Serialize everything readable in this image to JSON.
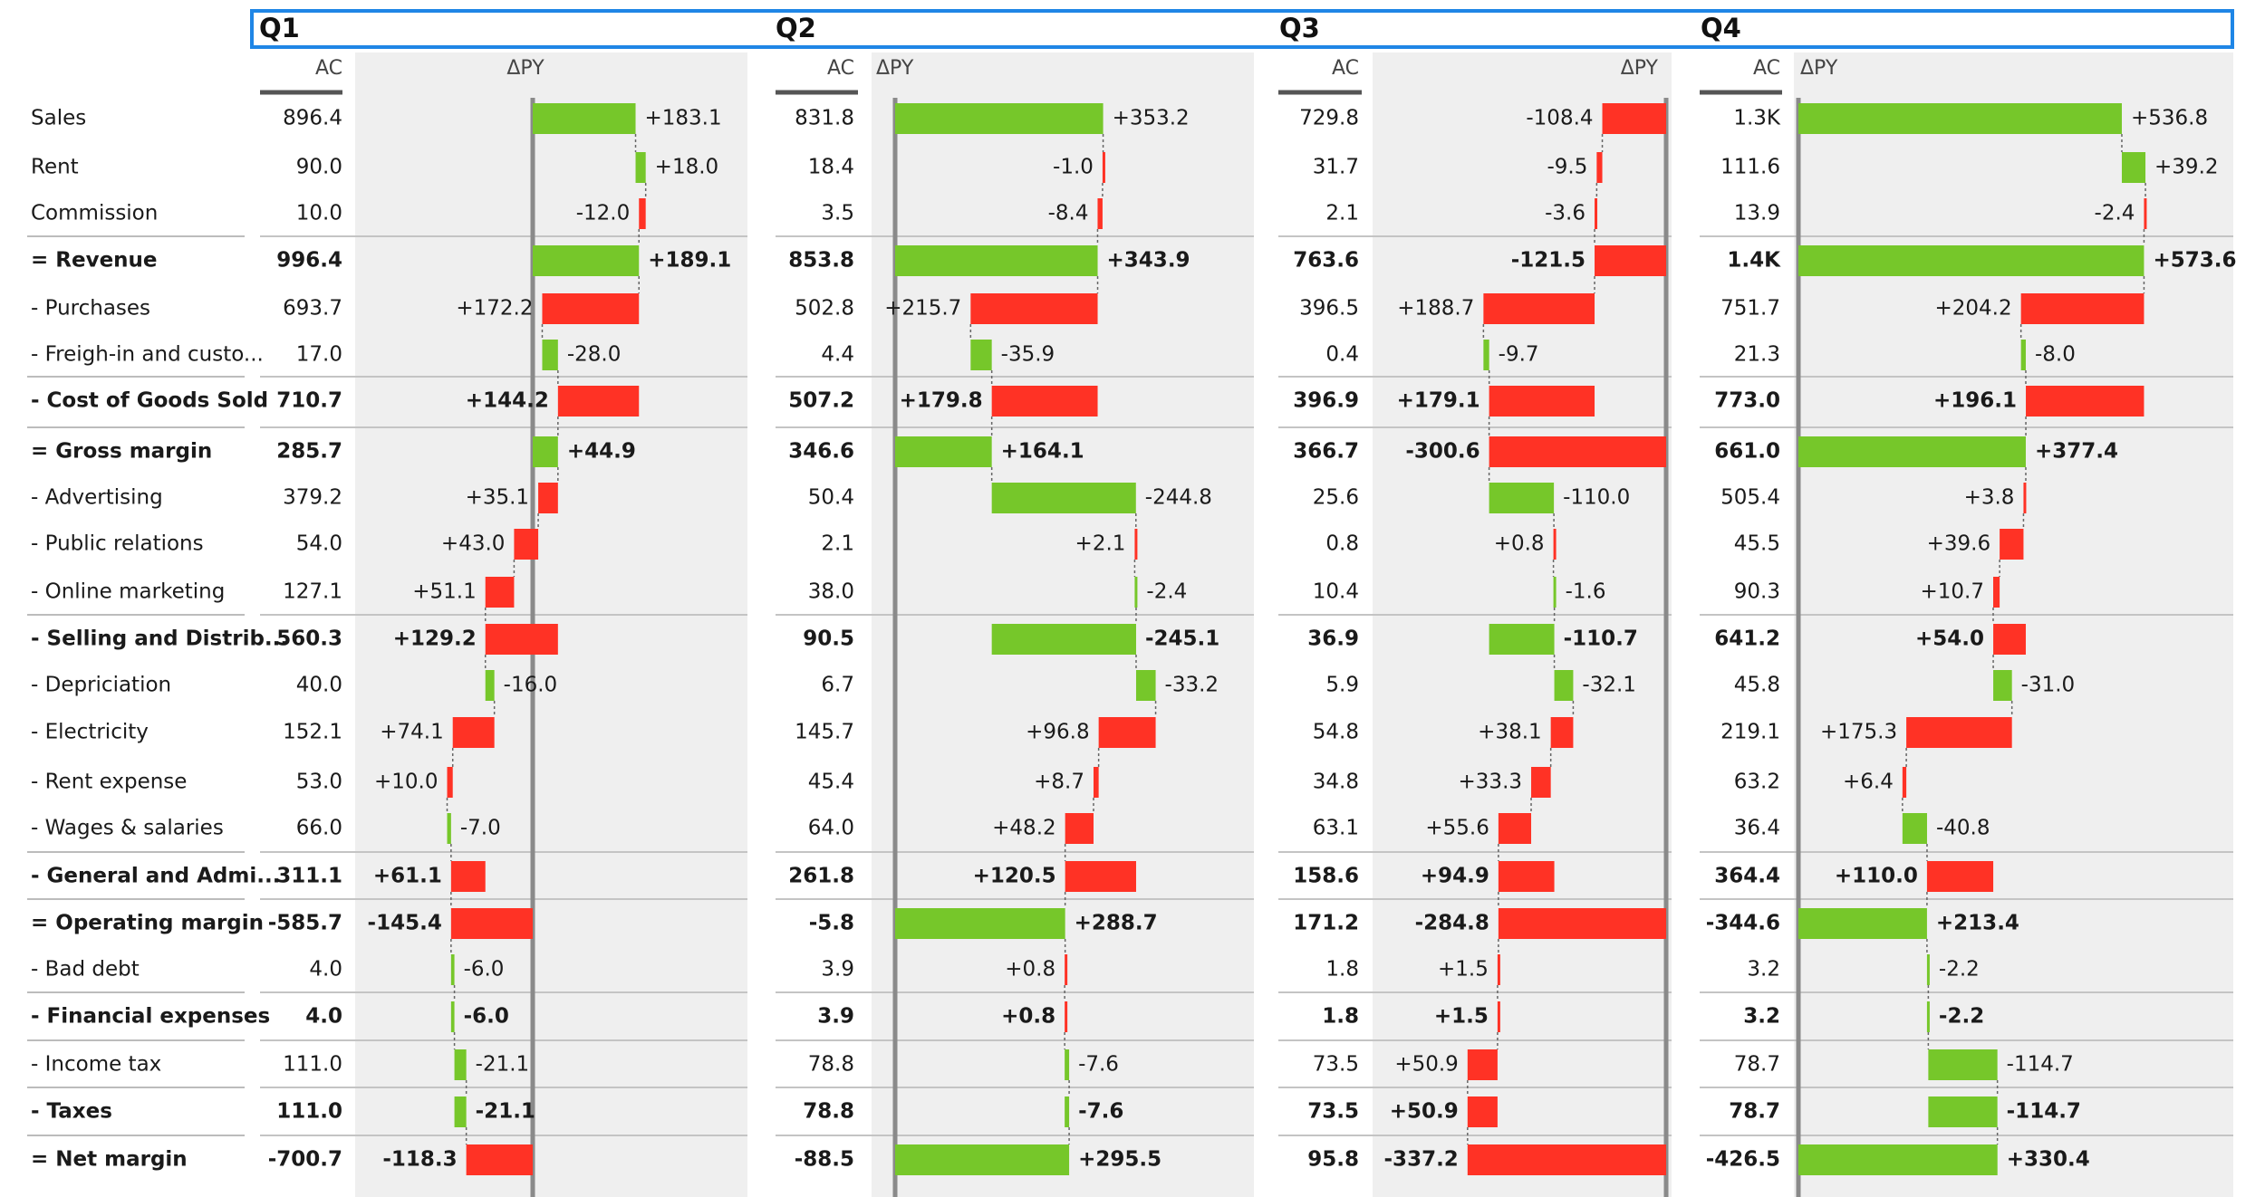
{
  "colors": {
    "positive": "#76c72a",
    "negative": "#ff3225",
    "panel": "#efefef",
    "axis": "#8a8a8a",
    "header_border": "#1f86e6"
  },
  "header": {
    "quarters": [
      "Q1",
      "Q2",
      "Q3",
      "Q4"
    ]
  },
  "column_headers": {
    "actual": "AC",
    "delta": "ΔPY"
  },
  "chart_data": {
    "type": "table",
    "title": "",
    "rows": [
      {
        "label": "Sales",
        "kind": "item"
      },
      {
        "label": "Rent",
        "kind": "item"
      },
      {
        "label": "Commission",
        "kind": "item"
      },
      {
        "label": "= Revenue",
        "kind": "result"
      },
      {
        "label": "- Purchases",
        "kind": "item"
      },
      {
        "label": "- Freigh-in and custo...",
        "kind": "item"
      },
      {
        "label": "- Cost of Goods Sold",
        "kind": "subtotal"
      },
      {
        "label": "= Gross margin",
        "kind": "result"
      },
      {
        "label": "- Advertising",
        "kind": "item"
      },
      {
        "label": "- Public relations",
        "kind": "item"
      },
      {
        "label": "- Online marketing",
        "kind": "item"
      },
      {
        "label": "- Selling and Distrib...",
        "kind": "subtotal"
      },
      {
        "label": "- Depriciation",
        "kind": "item"
      },
      {
        "label": "- Electricity",
        "kind": "item"
      },
      {
        "label": "- Rent expense",
        "kind": "item"
      },
      {
        "label": "- Wages & salaries",
        "kind": "item"
      },
      {
        "label": "- General and Admi...",
        "kind": "subtotal"
      },
      {
        "label": "= Operating margin",
        "kind": "result"
      },
      {
        "label": "- Bad debt",
        "kind": "item"
      },
      {
        "label": "- Financial expenses",
        "kind": "subtotal"
      },
      {
        "label": "- Income tax",
        "kind": "item"
      },
      {
        "label": "- Taxes",
        "kind": "subtotal"
      },
      {
        "label": "= Net margin",
        "kind": "result"
      }
    ],
    "quarters": [
      {
        "name": "Q1",
        "ac": [
          "896.4",
          "90.0",
          "10.0",
          "996.4",
          "693.7",
          "17.0",
          "710.7",
          "285.7",
          "379.2",
          "54.0",
          "127.1",
          "560.3",
          "40.0",
          "152.1",
          "53.0",
          "66.0",
          "311.1",
          "-585.7",
          "4.0",
          "4.0",
          "111.0",
          "111.0",
          "-700.7"
        ],
        "delta": [
          183.1,
          18.0,
          -12.0,
          189.1,
          172.2,
          -28.0,
          144.2,
          44.9,
          35.1,
          43.0,
          51.1,
          129.2,
          -16.0,
          74.1,
          10.0,
          -7.0,
          61.1,
          -145.4,
          -6.0,
          -6.0,
          -21.1,
          -21.1,
          -118.3
        ],
        "delta_labels": [
          "+183.1",
          "+18.0",
          "-12.0",
          "+189.1",
          "+172.2",
          "-28.0",
          "+144.2",
          "+44.9",
          "+35.1",
          "+43.0",
          "+51.1",
          "+129.2",
          "-16.0",
          "+74.1",
          "+10.0",
          "-7.0",
          "+61.1",
          "-145.4",
          "-6.0",
          "-6.0",
          "-21.1",
          "-21.1",
          "-118.3"
        ]
      },
      {
        "name": "Q2",
        "ac": [
          "831.8",
          "18.4",
          "3.5",
          "853.8",
          "502.8",
          "4.4",
          "507.2",
          "346.6",
          "50.4",
          "2.1",
          "38.0",
          "90.5",
          "6.7",
          "145.7",
          "45.4",
          "64.0",
          "261.8",
          "-5.8",
          "3.9",
          "3.9",
          "78.8",
          "78.8",
          "-88.5"
        ],
        "delta": [
          353.2,
          -1.0,
          -8.4,
          343.9,
          215.7,
          -35.9,
          179.8,
          164.1,
          -244.8,
          2.1,
          -2.4,
          -245.1,
          -33.2,
          96.8,
          8.7,
          48.2,
          120.5,
          288.7,
          0.8,
          0.8,
          -7.6,
          -7.6,
          295.5
        ],
        "delta_labels": [
          "+353.2",
          "-1.0",
          "-8.4",
          "+343.9",
          "+215.7",
          "-35.9",
          "+179.8",
          "+164.1",
          "-244.8",
          "+2.1",
          "-2.4",
          "-245.1",
          "-33.2",
          "+96.8",
          "+8.7",
          "+48.2",
          "+120.5",
          "+288.7",
          "+0.8",
          "+0.8",
          "-7.6",
          "-7.6",
          "+295.5"
        ]
      },
      {
        "name": "Q3",
        "ac": [
          "729.8",
          "31.7",
          "2.1",
          "763.6",
          "396.5",
          "0.4",
          "396.9",
          "366.7",
          "25.6",
          "0.8",
          "10.4",
          "36.9",
          "5.9",
          "54.8",
          "34.8",
          "63.1",
          "158.6",
          "171.2",
          "1.8",
          "1.8",
          "73.5",
          "73.5",
          "95.8"
        ],
        "delta": [
          -108.4,
          -9.5,
          -3.6,
          -121.5,
          188.7,
          -9.7,
          179.1,
          -300.6,
          -110.0,
          0.8,
          -1.6,
          -110.7,
          -32.1,
          38.1,
          33.3,
          55.6,
          94.9,
          -284.8,
          1.5,
          1.5,
          50.9,
          50.9,
          -337.2
        ],
        "delta_labels": [
          "-108.4",
          "-9.5",
          "-3.6",
          "-121.5",
          "+188.7",
          "-9.7",
          "+179.1",
          "-300.6",
          "-110.0",
          "+0.8",
          "-1.6",
          "-110.7",
          "-32.1",
          "+38.1",
          "+33.3",
          "+55.6",
          "+94.9",
          "-284.8",
          "+1.5",
          "+1.5",
          "+50.9",
          "+50.9",
          "-337.2"
        ]
      },
      {
        "name": "Q4",
        "ac": [
          "1.3K",
          "111.6",
          "13.9",
          "1.4K",
          "751.7",
          "21.3",
          "773.0",
          "661.0",
          "505.4",
          "45.5",
          "90.3",
          "641.2",
          "45.8",
          "219.1",
          "63.2",
          "36.4",
          "364.4",
          "-344.6",
          "3.2",
          "3.2",
          "78.7",
          "78.7",
          "-426.5"
        ],
        "delta": [
          536.8,
          39.2,
          -2.4,
          573.6,
          204.2,
          -8.0,
          196.1,
          377.4,
          3.8,
          39.6,
          10.7,
          54.0,
          -31.0,
          175.3,
          6.4,
          -40.8,
          110.0,
          213.4,
          -2.2,
          -2.2,
          -114.7,
          -114.7,
          330.4
        ],
        "delta_labels": [
          "+536.8",
          "+39.2",
          "-2.4",
          "+573.6",
          "+204.2",
          "-8.0",
          "+196.1",
          "+377.4",
          "+3.8",
          "+39.6",
          "+10.7",
          "+54.0",
          "-31.0",
          "+175.3",
          "+6.4",
          "-40.8",
          "+110.0",
          "+213.4",
          "-2.2",
          "-2.2",
          "-114.7",
          "-114.7",
          "+330.4"
        ]
      }
    ]
  }
}
